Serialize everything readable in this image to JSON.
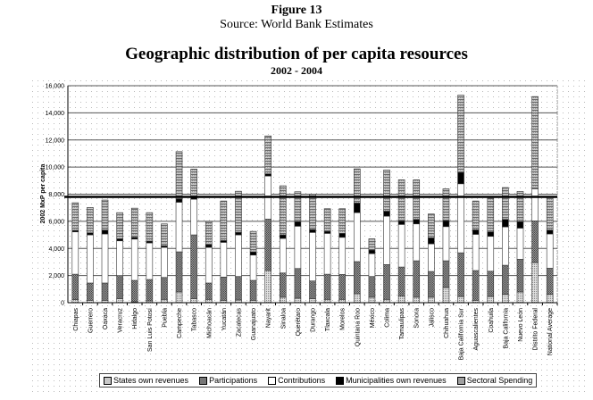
{
  "figure_label": "Figure 13",
  "source": "Source: World Bank Estimates",
  "chart_data": {
    "type": "bar",
    "stacked": true,
    "title": "Geographic distribution of per capita resources",
    "subtitle": "2002 - 2004",
    "xlabel": "",
    "ylabel": "2002 MxP per capita",
    "ylim": [
      0,
      16000
    ],
    "yticks": [
      0,
      2000,
      4000,
      6000,
      8000,
      10000,
      12000,
      14000,
      16000
    ],
    "ytick_labels": [
      "0",
      "2,000",
      "4,000",
      "6,000",
      "8,000",
      "10,000",
      "12,000",
      "14,000",
      "16,000"
    ],
    "grid": true,
    "reference_line": {
      "value": 7800,
      "label": "National Average"
    },
    "legend_position": "bottom",
    "categories": [
      "Chiapas",
      "Guerrero",
      "Oaxaca",
      "Veracruz",
      "Hidalgo",
      "San Luis Potosí",
      "Puebla",
      "Campeche",
      "Tabasco",
      "Michoacán",
      "Yucatán",
      "Zacatecas",
      "Guanajuato",
      "Nayarit",
      "Sinaloa",
      "Querétaro",
      "Durango",
      "Tlaxcala",
      "Morelos",
      "Quintana Roo",
      "México",
      "Colima",
      "Tamaulipas",
      "Sonora",
      "Jalisco",
      "Chihuahua",
      "Baja California Sur",
      "Aguascalientes",
      "Coahuila",
      "Baja California",
      "Nuevo León",
      "Distrito Federal",
      "National Average"
    ],
    "series": [
      {
        "name": "States own revenues",
        "color": "#c8c8c8",
        "values": [
          220,
          175,
          175,
          285,
          65,
          130,
          240,
          790,
          285,
          240,
          175,
          200,
          175,
          2370,
          400,
          330,
          285,
          240,
          240,
          660,
          400,
          240,
          500,
          400,
          400,
          1120,
          460,
          175,
          460,
          610,
          790,
          2960,
          610
        ]
      },
      {
        "name": "Participations",
        "color": "#777777",
        "values": [
          1880,
          1275,
          1275,
          1715,
          1580,
          1580,
          1620,
          2960,
          4715,
          1210,
          1715,
          1730,
          1470,
          3790,
          1790,
          2190,
          1315,
          1860,
          1840,
          2370,
          1530,
          2570,
          2130,
          2690,
          1900,
          1970,
          3220,
          2195,
          1860,
          2150,
          2410,
          3070,
          1930
        ]
      },
      {
        "name": "Contributions",
        "color": "#ffffff",
        "values": [
          3120,
          3550,
          3620,
          2560,
          3045,
          2700,
          2220,
          3660,
          2630,
          2630,
          2560,
          3070,
          1865,
          3180,
          2550,
          3120,
          3580,
          3010,
          2740,
          3610,
          1690,
          3570,
          3140,
          2720,
          2040,
          2520,
          5090,
          2670,
          2570,
          2830,
          2300,
          2370,
          2530
        ]
      },
      {
        "name": "Municipalities own revenues",
        "color": "#000000",
        "values": [
          110,
          150,
          280,
          150,
          130,
          130,
          110,
          240,
          150,
          200,
          130,
          180,
          240,
          160,
          260,
          350,
          210,
          150,
          290,
          710,
          260,
          370,
          260,
          330,
          440,
          440,
          830,
          330,
          330,
          550,
          490,
          0,
          280
        ]
      },
      {
        "name": "Sectoral Spending",
        "color": "#a0a0a0",
        "values": [
          2040,
          1870,
          2220,
          1930,
          2150,
          2100,
          1620,
          3490,
          2070,
          1710,
          2920,
          3040,
          1510,
          2800,
          3620,
          2190,
          2610,
          1670,
          1820,
          2520,
          830,
          3030,
          3030,
          2920,
          1760,
          2350,
          5700,
          2130,
          2480,
          2350,
          2210,
          6800,
          2440
        ]
      }
    ]
  }
}
